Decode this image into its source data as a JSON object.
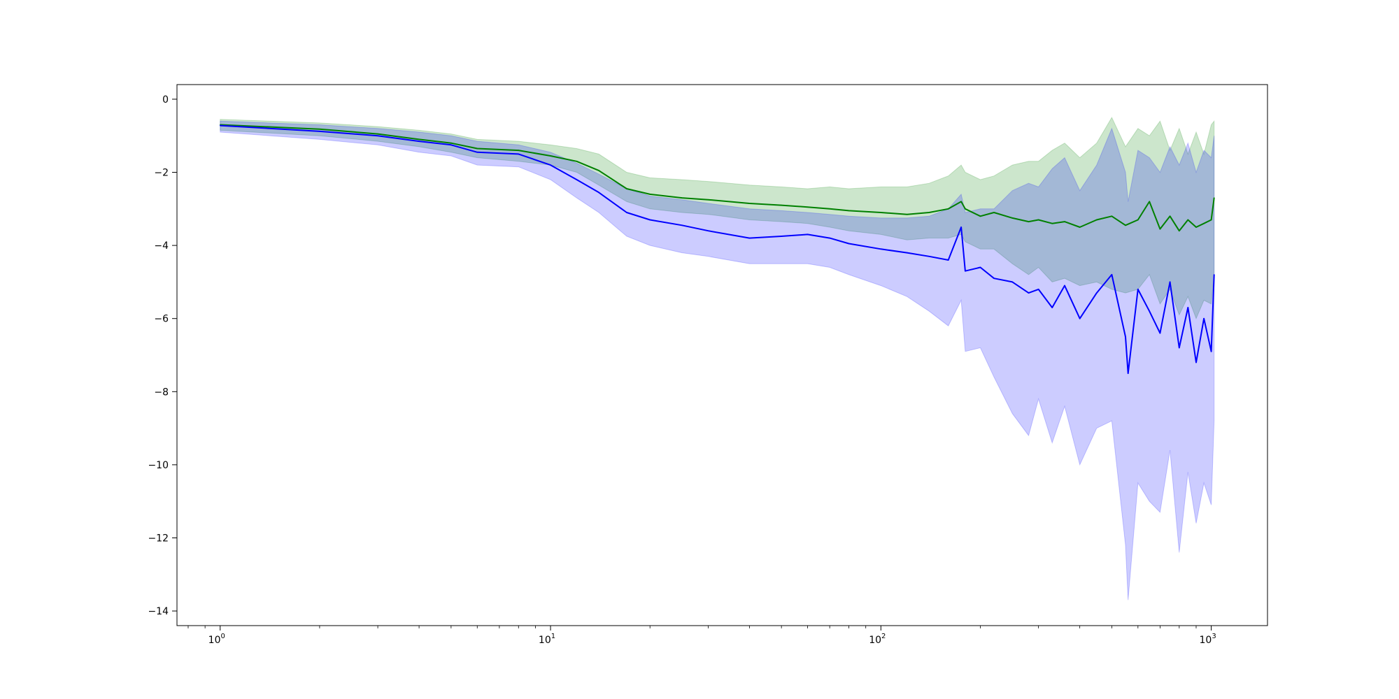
{
  "chart_data": {
    "type": "line",
    "title": "",
    "xlabel": "",
    "ylabel": "",
    "xscale": "log",
    "xlim": [
      0.74,
      1480
    ],
    "ylim": [
      -14.4,
      0.4
    ],
    "grid": false,
    "legend": "none",
    "x_ticks": [
      {
        "base": "10",
        "exp": "0",
        "value": 1
      },
      {
        "base": "10",
        "exp": "1",
        "value": 10
      },
      {
        "base": "10",
        "exp": "2",
        "value": 100
      },
      {
        "base": "10",
        "exp": "3",
        "value": 1000
      }
    ],
    "y_ticks": [
      {
        "label": "0",
        "value": 0
      },
      {
        "label": "−2",
        "value": -2
      },
      {
        "label": "−4",
        "value": -4
      },
      {
        "label": "−6",
        "value": -6
      },
      {
        "label": "−8",
        "value": -8
      },
      {
        "label": "−10",
        "value": -10
      },
      {
        "label": "−12",
        "value": -12
      },
      {
        "label": "−14",
        "value": -14
      }
    ],
    "series": [
      {
        "color": "#008000",
        "band_color": "#008000",
        "band_opacity": 0.2,
        "x": [
          1,
          2,
          3,
          4,
          5,
          6,
          8,
          10,
          12,
          14,
          17,
          20,
          25,
          30,
          40,
          50,
          60,
          70,
          80,
          100,
          120,
          140,
          160,
          175,
          180,
          200,
          220,
          250,
          280,
          300,
          330,
          360,
          400,
          450,
          500,
          550,
          600,
          650,
          700,
          750,
          800,
          850,
          900,
          950,
          1000,
          1020
        ],
        "y": [
          -0.7,
          -0.82,
          -0.95,
          -1.1,
          -1.2,
          -1.35,
          -1.4,
          -1.55,
          -1.7,
          -1.95,
          -2.45,
          -2.6,
          -2.7,
          -2.75,
          -2.85,
          -2.9,
          -2.95,
          -3.0,
          -3.05,
          -3.1,
          -3.15,
          -3.1,
          -3.0,
          -2.8,
          -3.0,
          -3.2,
          -3.1,
          -3.25,
          -3.35,
          -3.3,
          -3.4,
          -3.35,
          -3.5,
          -3.3,
          -3.2,
          -3.45,
          -3.3,
          -2.8,
          -3.55,
          -3.2,
          -3.6,
          -3.3,
          -3.5,
          -3.4,
          -3.3,
          -2.7
        ],
        "upper": [
          -0.55,
          -0.65,
          -0.75,
          -0.85,
          -0.95,
          -1.1,
          -1.15,
          -1.25,
          -1.35,
          -1.5,
          -2.0,
          -2.15,
          -2.2,
          -2.25,
          -2.35,
          -2.4,
          -2.45,
          -2.4,
          -2.45,
          -2.4,
          -2.4,
          -2.3,
          -2.1,
          -1.8,
          -2.0,
          -2.2,
          -2.1,
          -1.8,
          -1.7,
          -1.7,
          -1.4,
          -1.2,
          -1.6,
          -1.2,
          -0.5,
          -1.3,
          -0.8,
          -1.0,
          -0.6,
          -1.4,
          -0.8,
          -1.5,
          -0.9,
          -1.5,
          -0.7,
          -0.6
        ],
        "lower": [
          -0.85,
          -1.0,
          -1.15,
          -1.3,
          -1.45,
          -1.6,
          -1.7,
          -1.8,
          -2.0,
          -2.35,
          -2.8,
          -3.0,
          -3.1,
          -3.15,
          -3.3,
          -3.35,
          -3.4,
          -3.5,
          -3.6,
          -3.7,
          -3.85,
          -3.8,
          -3.8,
          -3.7,
          -3.9,
          -4.1,
          -4.1,
          -4.5,
          -4.8,
          -4.6,
          -5.0,
          -4.9,
          -5.1,
          -5.0,
          -5.2,
          -5.3,
          -5.2,
          -4.8,
          -5.6,
          -5.2,
          -5.9,
          -5.4,
          -6.0,
          -5.5,
          -5.6,
          -4.8
        ]
      },
      {
        "color": "#0000ff",
        "band_color": "#0000ff",
        "band_opacity": 0.2,
        "x": [
          1,
          2,
          3,
          4,
          5,
          6,
          8,
          10,
          12,
          14,
          17,
          20,
          25,
          30,
          40,
          50,
          60,
          70,
          80,
          100,
          120,
          140,
          160,
          175,
          180,
          200,
          220,
          250,
          280,
          300,
          330,
          360,
          400,
          450,
          500,
          550,
          560,
          600,
          650,
          700,
          750,
          800,
          850,
          900,
          950,
          1000,
          1020
        ],
        "y": [
          -0.72,
          -0.88,
          -1.0,
          -1.15,
          -1.25,
          -1.45,
          -1.5,
          -1.8,
          -2.2,
          -2.55,
          -3.1,
          -3.3,
          -3.45,
          -3.6,
          -3.8,
          -3.75,
          -3.7,
          -3.8,
          -3.95,
          -4.1,
          -4.2,
          -4.3,
          -4.4,
          -3.5,
          -4.7,
          -4.6,
          -4.9,
          -5.0,
          -5.3,
          -5.2,
          -5.7,
          -5.1,
          -6.0,
          -5.3,
          -4.8,
          -6.5,
          -7.5,
          -5.2,
          -5.8,
          -6.4,
          -5.0,
          -6.8,
          -5.7,
          -7.2,
          -6.0,
          -6.9,
          -4.8
        ],
        "upper": [
          -0.6,
          -0.7,
          -0.8,
          -0.9,
          -1.0,
          -1.15,
          -1.25,
          -1.45,
          -1.75,
          -2.05,
          -2.45,
          -2.65,
          -2.75,
          -2.85,
          -3.0,
          -3.05,
          -3.1,
          -3.15,
          -3.2,
          -3.25,
          -3.25,
          -3.2,
          -3.0,
          -2.6,
          -3.1,
          -3.0,
          -3.0,
          -2.5,
          -2.3,
          -2.4,
          -1.9,
          -1.6,
          -2.5,
          -1.8,
          -0.8,
          -2.0,
          -2.8,
          -1.4,
          -1.6,
          -2.0,
          -1.3,
          -1.8,
          -1.2,
          -2.0,
          -1.4,
          -1.6,
          -1.0
        ],
        "lower": [
          -0.9,
          -1.1,
          -1.25,
          -1.45,
          -1.55,
          -1.8,
          -1.85,
          -2.2,
          -2.7,
          -3.1,
          -3.75,
          -4.0,
          -4.2,
          -4.3,
          -4.5,
          -4.5,
          -4.5,
          -4.6,
          -4.8,
          -5.1,
          -5.4,
          -5.8,
          -6.2,
          -5.5,
          -6.9,
          -6.8,
          -7.6,
          -8.6,
          -9.2,
          -8.2,
          -9.4,
          -8.4,
          -10.0,
          -9.0,
          -8.8,
          -12.2,
          -13.7,
          -10.5,
          -11.0,
          -11.3,
          -9.6,
          -12.4,
          -10.2,
          -11.6,
          -10.5,
          -11.1,
          -8.8
        ]
      }
    ]
  }
}
